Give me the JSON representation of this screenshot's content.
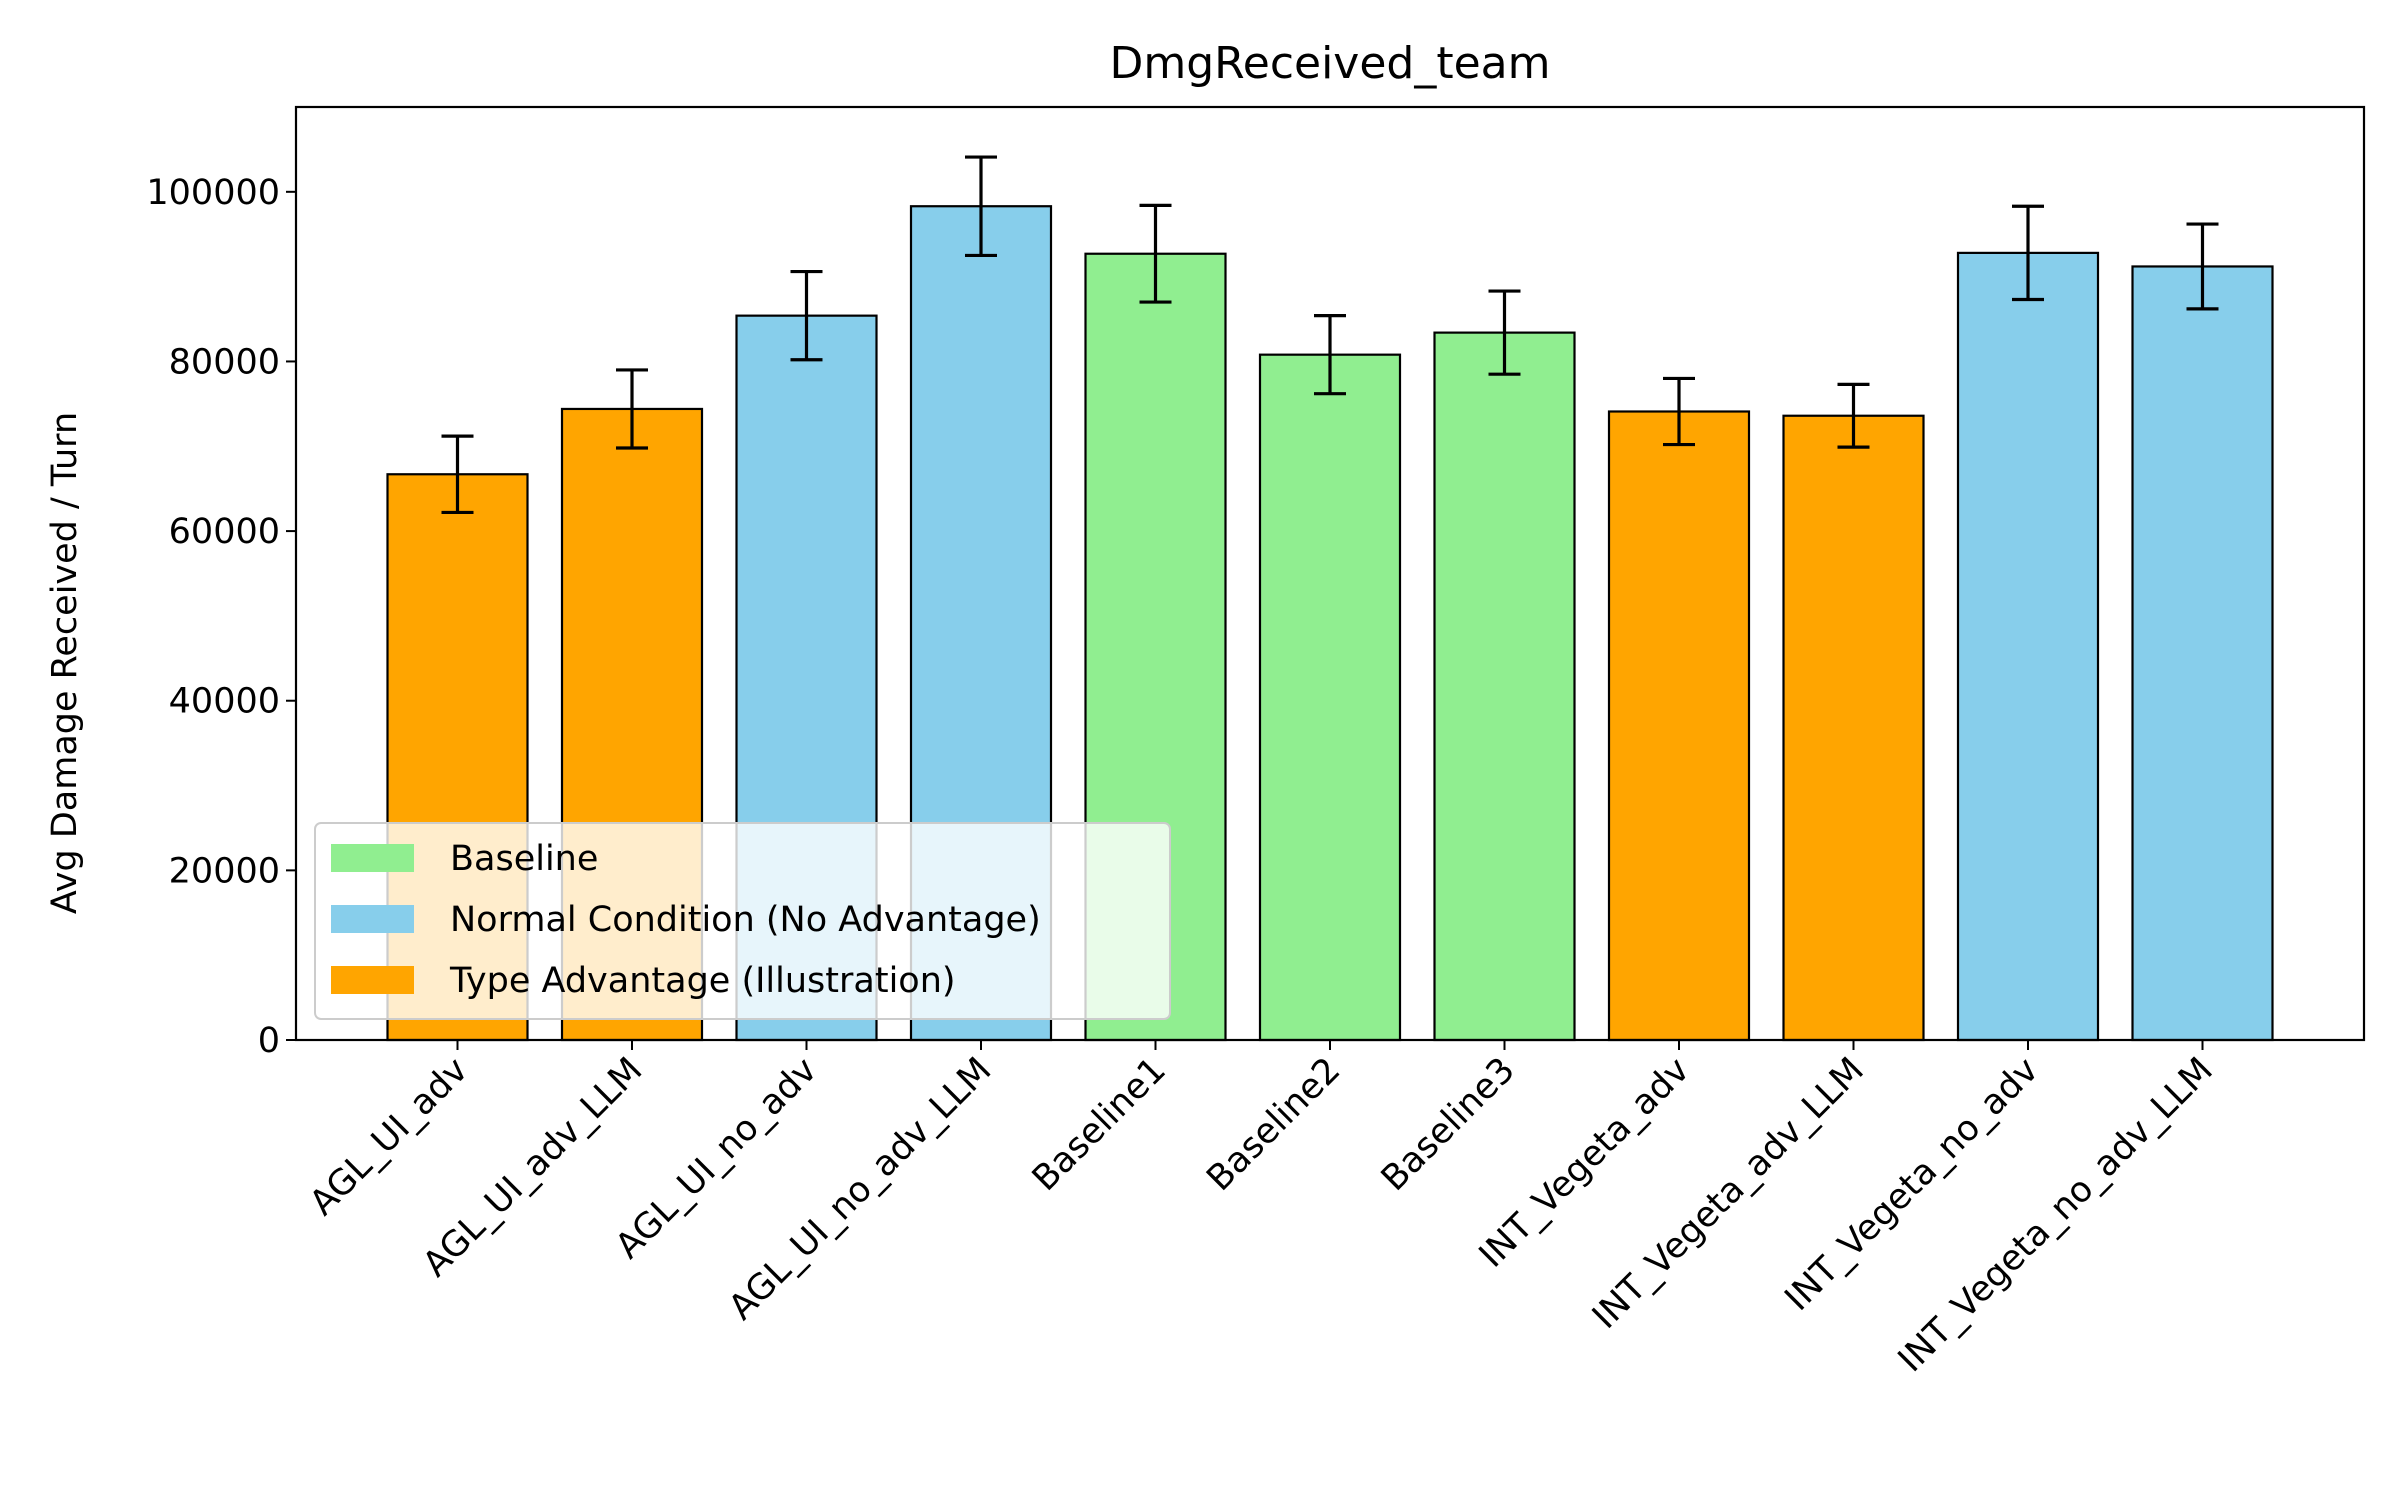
{
  "chart_data": {
    "type": "bar",
    "title": "DmgReceived_team",
    "xlabel": "",
    "ylabel": "Avg Damage Received / Turn",
    "ylim": [
      0,
      110000
    ],
    "yticks": [
      0,
      20000,
      40000,
      60000,
      80000,
      100000
    ],
    "ytick_labels": [
      "0",
      "20000",
      "40000",
      "60000",
      "80000",
      "100000"
    ],
    "grid": false,
    "legend_position": "lower-left",
    "categories": [
      "AGL_UI_adv",
      "AGL_UI_adv_LLM",
      "AGL_UI_no_adv",
      "AGL_UI_no_adv_LLM",
      "Baseline1",
      "Baseline2",
      "Baseline3",
      "INT_Vegeta_adv",
      "INT_Vegeta_adv_LLM",
      "INT_Vegeta_no_adv",
      "INT_Vegeta_no_adv_LLM"
    ],
    "values": [
      66700,
      74400,
      85400,
      98300,
      92700,
      80800,
      83400,
      74100,
      73600,
      92800,
      91200
    ],
    "errors": [
      4500,
      4600,
      5200,
      5800,
      5700,
      4600,
      4900,
      3900,
      3700,
      5500,
      5000
    ],
    "groups": [
      "Type Advantage (Illustration)",
      "Type Advantage (Illustration)",
      "Normal Condition (No Advantage)",
      "Normal Condition (No Advantage)",
      "Baseline",
      "Baseline",
      "Baseline",
      "Type Advantage (Illustration)",
      "Type Advantage (Illustration)",
      "Normal Condition (No Advantage)",
      "Normal Condition (No Advantage)"
    ],
    "legend": [
      {
        "name": "Baseline",
        "color": "#90ee90"
      },
      {
        "name": "Normal Condition (No Advantage)",
        "color": "#87ceeb"
      },
      {
        "name": "Type Advantage (Illustration)",
        "color": "#ffa500"
      }
    ]
  }
}
